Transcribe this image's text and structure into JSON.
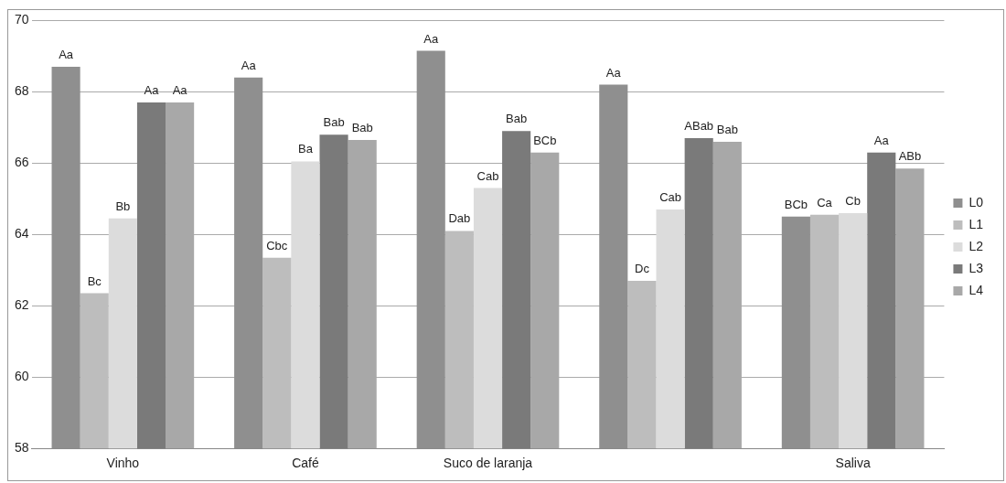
{
  "chart_data": {
    "type": "bar",
    "categories": [
      "Vinho",
      "Café",
      "Suco de laranja",
      null,
      "Saliva"
    ],
    "series": [
      {
        "name": "L0",
        "color": "#8f8f8f",
        "values": [
          68.7,
          68.4,
          69.15,
          68.2,
          64.5
        ],
        "value_labels": [
          "Aa",
          "Aa",
          "Aa",
          "Aa",
          "BCb"
        ]
      },
      {
        "name": "L1",
        "color": "#bdbdbd",
        "values": [
          62.35,
          63.35,
          64.1,
          62.7,
          64.55
        ],
        "value_labels": [
          "Bc",
          "Cbc",
          "Dab",
          "Dc",
          "Ca"
        ]
      },
      {
        "name": "L2",
        "color": "#dcdcdc",
        "values": [
          64.45,
          66.05,
          65.3,
          64.7,
          64.6
        ],
        "value_labels": [
          "Bb",
          "Ba",
          "Cab",
          "Cab",
          "Cb"
        ]
      },
      {
        "name": "L3",
        "color": "#7a7a7a",
        "values": [
          67.7,
          66.8,
          66.9,
          66.7,
          66.3
        ],
        "value_labels": [
          "Aa",
          "Bab",
          "Bab",
          "ABab",
          "Aa"
        ]
      },
      {
        "name": "L4",
        "color": "#a8a8a8",
        "values": [
          67.7,
          66.65,
          66.3,
          66.6,
          65.85
        ],
        "value_labels": [
          "Aa",
          "Bab",
          "BCb",
          "Bab",
          "ABb"
        ]
      }
    ],
    "ylim": [
      58,
      70
    ],
    "yticks": [
      58,
      60,
      62,
      64,
      66,
      68,
      70
    ],
    "grid": "y",
    "legend": "right"
  }
}
